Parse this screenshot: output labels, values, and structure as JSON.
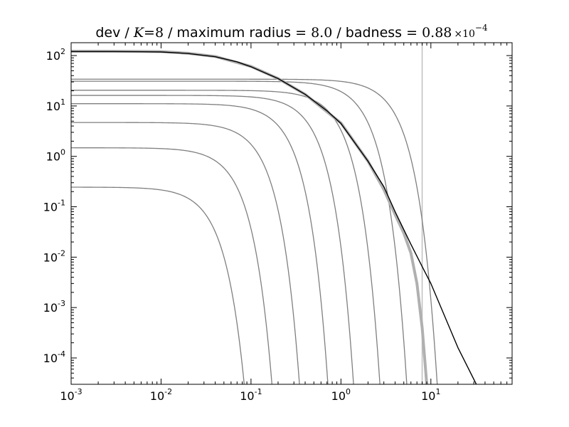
{
  "chart_data": {
    "type": "line",
    "title": {
      "prefix": "dev / ",
      "k_symbol": "K",
      "k_eq": "=",
      "k_value": "8",
      "radius_text": " / maximum radius = ",
      "radius_value": "8.0",
      "badness_text": " / badness = ",
      "badness_mantissa": "0.88",
      "badness_times": "×10",
      "badness_exponent": "−4"
    },
    "x_scale": "log",
    "y_scale": "log",
    "xlim": [
      0.001,
      80
    ],
    "ylim": [
      3e-05,
      180
    ],
    "x_ticks": [
      {
        "value": 0.001,
        "base": "10",
        "exp": "-3"
      },
      {
        "value": 0.01,
        "base": "10",
        "exp": "-2"
      },
      {
        "value": 0.1,
        "base": "10",
        "exp": "-1"
      },
      {
        "value": 1,
        "base": "10",
        "exp": "0"
      },
      {
        "value": 10,
        "base": "10",
        "exp": "1"
      }
    ],
    "y_ticks": [
      {
        "value": 0.0001,
        "base": "10",
        "exp": "-4"
      },
      {
        "value": 0.001,
        "base": "10",
        "exp": "-3"
      },
      {
        "value": 0.01,
        "base": "10",
        "exp": "-2"
      },
      {
        "value": 0.1,
        "base": "10",
        "exp": "-1"
      },
      {
        "value": 1,
        "base": "10",
        "exp": "0"
      },
      {
        "value": 10,
        "base": "10",
        "exp": "1"
      },
      {
        "value": 100,
        "base": "10",
        "exp": "2"
      }
    ],
    "vertical_line": {
      "x": 8.0,
      "color": "#bfbfbf"
    },
    "colors": {
      "component": "#7f7f7f",
      "approx": "#b0b0b0",
      "target": "#000000"
    },
    "target_curve": {
      "name": "dev",
      "points": [
        [
          0.001,
          120
        ],
        [
          0.003,
          120
        ],
        [
          0.006,
          119
        ],
        [
          0.01,
          118
        ],
        [
          0.02,
          110
        ],
        [
          0.04,
          95
        ],
        [
          0.07,
          75
        ],
        [
          0.1,
          60
        ],
        [
          0.2,
          35
        ],
        [
          0.4,
          17
        ],
        [
          0.7,
          8
        ],
        [
          1,
          4.5
        ],
        [
          2,
          0.8
        ],
        [
          3,
          0.25
        ],
        [
          4,
          0.08
        ],
        [
          6,
          0.018
        ],
        [
          8,
          0.0065
        ],
        [
          10,
          0.003
        ],
        [
          20,
          0.00016
        ],
        [
          32,
          3e-05
        ]
      ]
    },
    "approx_curve": {
      "points": [
        [
          0.001,
          122
        ],
        [
          0.006,
          121
        ],
        [
          0.01,
          120
        ],
        [
          0.02,
          111
        ],
        [
          0.04,
          96
        ],
        [
          0.1,
          61
        ],
        [
          0.2,
          35
        ],
        [
          0.4,
          17
        ],
        [
          1,
          4.6
        ],
        [
          2,
          0.8
        ],
        [
          3,
          0.22
        ],
        [
          4,
          0.07
        ],
        [
          5,
          0.03
        ],
        [
          6,
          0.012
        ],
        [
          7,
          0.003
        ],
        [
          8,
          0.0004
        ],
        [
          9,
          3e-05
        ]
      ]
    },
    "components": [
      {
        "amplitude": 0.245,
        "scale": 0.028
      },
      {
        "amplitude": 1.48,
        "scale": 0.052
      },
      {
        "amplitude": 4.7,
        "scale": 0.1
      },
      {
        "amplitude": 11.1,
        "scale": 0.2
      },
      {
        "amplitude": 16.2,
        "scale": 0.38
      },
      {
        "amplitude": 20.5,
        "scale": 0.74
      },
      {
        "amplitude": 31,
        "scale": 1.45
      },
      {
        "amplitude": 34,
        "scale": 3.15
      }
    ]
  }
}
